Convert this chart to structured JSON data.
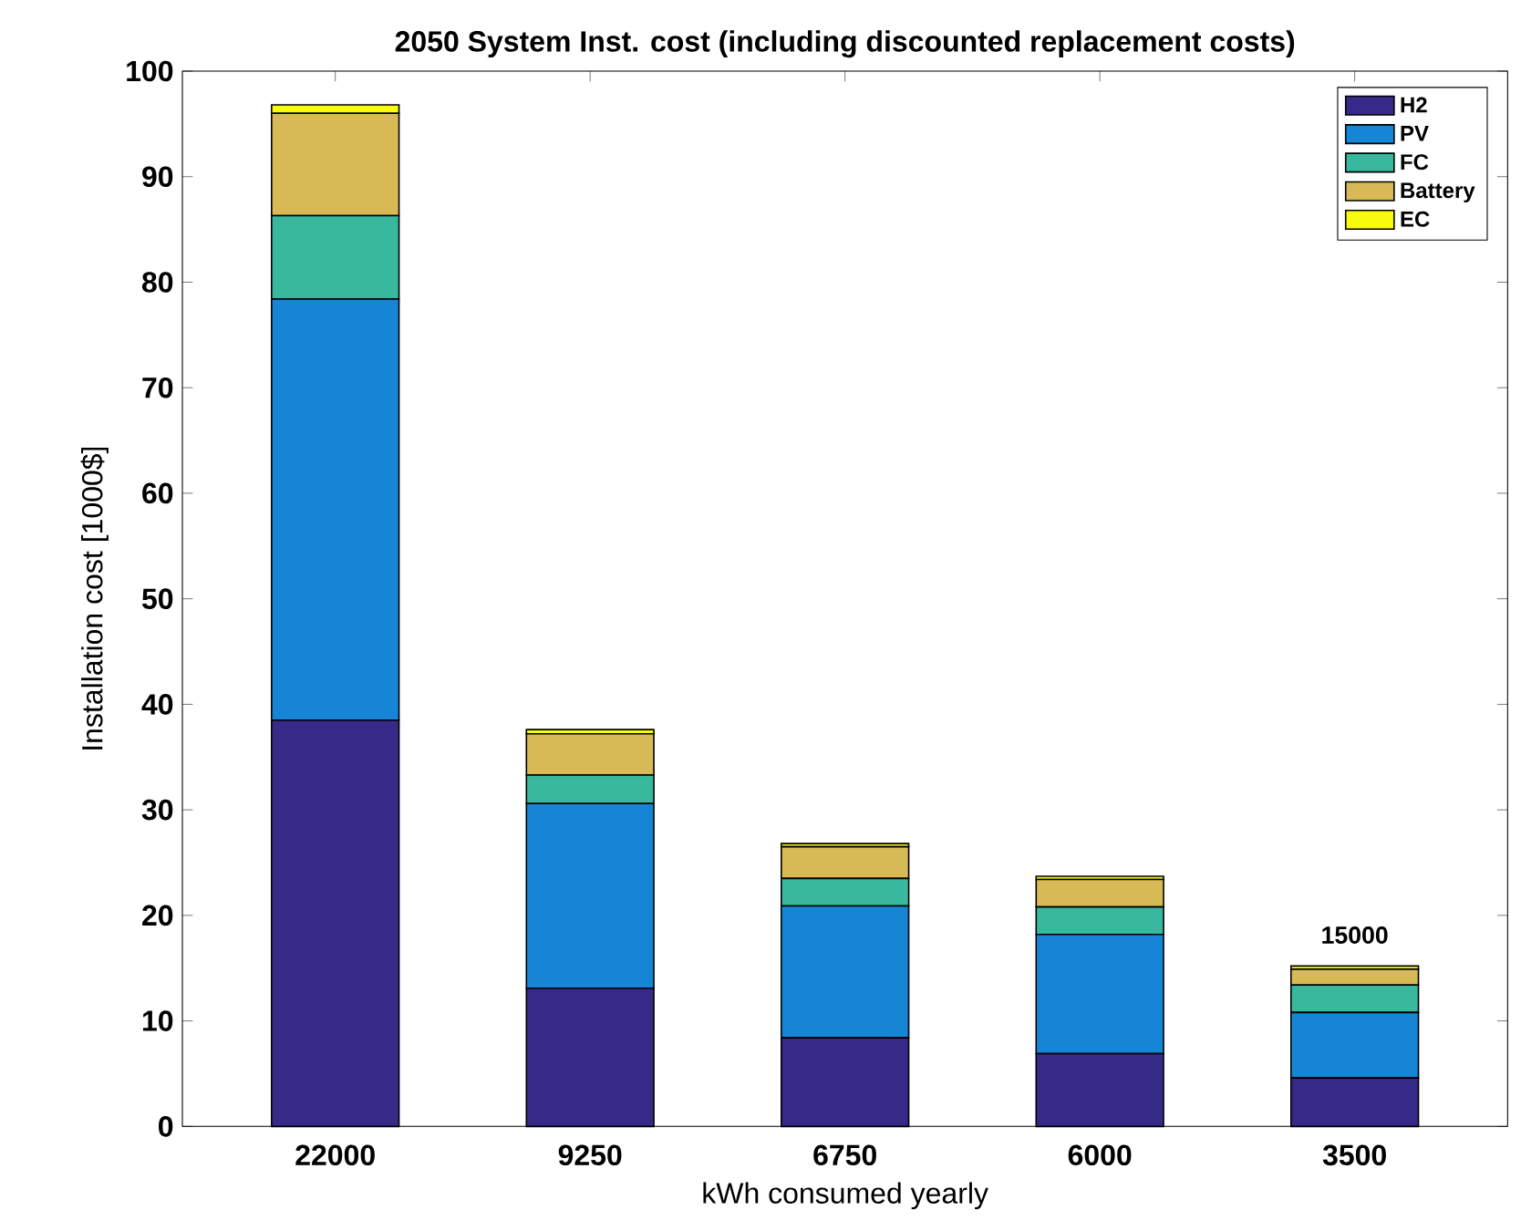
{
  "chart_data": {
    "type": "bar",
    "stacked": true,
    "title": "2050 System Inst. cost (including discounted replacement costs)",
    "xlabel": "kWh consumed yearly",
    "ylabel": "Installation cost [1000$]",
    "categories": [
      "22000",
      "9250",
      "6750",
      "6000",
      "3500"
    ],
    "series": [
      {
        "name": "H2",
        "color": "#352a87",
        "values": [
          38.5,
          13.1,
          8.4,
          6.9,
          4.6
        ]
      },
      {
        "name": "PV",
        "color": "#1685d6",
        "values": [
          39.9,
          17.5,
          12.5,
          11.3,
          6.2
        ]
      },
      {
        "name": "FC",
        "color": "#38b99e",
        "values": [
          7.9,
          2.7,
          2.6,
          2.6,
          2.6
        ]
      },
      {
        "name": "Battery",
        "color": "#d7ba55",
        "values": [
          9.7,
          3.9,
          3.0,
          2.6,
          1.5
        ]
      },
      {
        "name": "EC",
        "color": "#f9fb0e",
        "values": [
          0.8,
          0.4,
          0.3,
          0.3,
          0.3
        ]
      }
    ],
    "ylim": [
      0,
      100
    ],
    "yticks": [
      0,
      10,
      20,
      30,
      40,
      50,
      60,
      70,
      80,
      90,
      100
    ],
    "legend": "top right",
    "annotations": [
      "15000"
    ]
  }
}
